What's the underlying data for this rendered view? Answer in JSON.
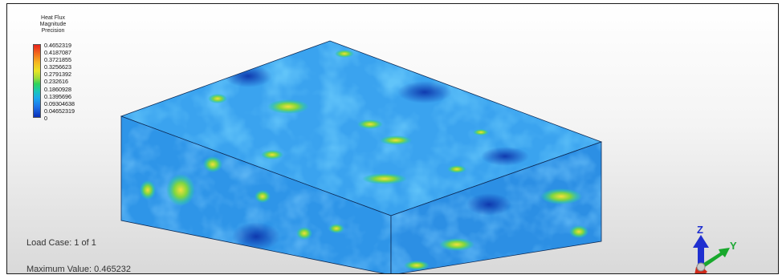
{
  "legend": {
    "title_lines": [
      "Heat Flux",
      "Magnitude",
      "Precision"
    ],
    "values": [
      "0.4652319",
      "0.4187087",
      "0.3721855",
      "0.3256623",
      "0.2791392",
      "0.232616",
      "0.1860928",
      "0.1395696",
      "0.09304638",
      "0.04652319",
      "0"
    ]
  },
  "info": {
    "load_case": "Load Case:  1 of 1",
    "max_value": "Maximum Value: 0.465232"
  },
  "axis": {
    "z_label": "Z",
    "y_label": "Y"
  },
  "colors": {
    "box_base": "#2a8ce6",
    "frame_border": "#1a1a1a"
  },
  "icons": [
    "axis-triad-icon"
  ]
}
